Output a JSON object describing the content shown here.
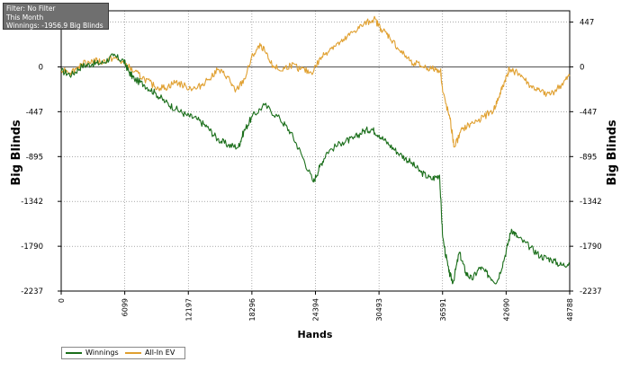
{
  "info": {
    "filter": "Filter: No Filter",
    "period": "This Month",
    "winnings": "Winnings: -1956.9 Big Blinds"
  },
  "chart_data": {
    "type": "line",
    "xlabel": "Hands",
    "ylabel": "Big Blinds",
    "y_ticks": [
      447,
      0,
      -447,
      -895,
      -1342,
      -1790,
      -2237
    ],
    "ylim": [
      -2237,
      560
    ],
    "x_tick_labels": [
      "0",
      "6099",
      "12197",
      "18296",
      "24394",
      "30493",
      "36591",
      "42690",
      "48788"
    ],
    "xlim": [
      0,
      48788
    ],
    "grid": true,
    "legend": "bottom-left",
    "series": [
      {
        "name": "Winnings",
        "color": "#1a6e1a",
        "points": [
          [
            0,
            -40
          ],
          [
            1000,
            -80
          ],
          [
            2000,
            10
          ],
          [
            3000,
            30
          ],
          [
            4000,
            40
          ],
          [
            5000,
            110
          ],
          [
            6000,
            60
          ],
          [
            6500,
            -50
          ],
          [
            7000,
            -120
          ],
          [
            8000,
            -180
          ],
          [
            9000,
            -260
          ],
          [
            10000,
            -350
          ],
          [
            11000,
            -420
          ],
          [
            12000,
            -480
          ],
          [
            13000,
            -520
          ],
          [
            14000,
            -600
          ],
          [
            15000,
            -720
          ],
          [
            16000,
            -780
          ],
          [
            17000,
            -800
          ],
          [
            17500,
            -650
          ],
          [
            18300,
            -500
          ],
          [
            19500,
            -380
          ],
          [
            21000,
            -520
          ],
          [
            22000,
            -650
          ],
          [
            23000,
            -860
          ],
          [
            24200,
            -1150
          ],
          [
            24800,
            -1000
          ],
          [
            25500,
            -850
          ],
          [
            27000,
            -750
          ],
          [
            28000,
            -720
          ],
          [
            29000,
            -640
          ],
          [
            29800,
            -620
          ],
          [
            30500,
            -680
          ],
          [
            31500,
            -780
          ],
          [
            32500,
            -870
          ],
          [
            33500,
            -950
          ],
          [
            34500,
            -1050
          ],
          [
            35500,
            -1120
          ],
          [
            36300,
            -1080
          ],
          [
            36600,
            -1700
          ],
          [
            37200,
            -2050
          ],
          [
            37600,
            -2150
          ],
          [
            38200,
            -1850
          ],
          [
            38800,
            -2050
          ],
          [
            39400,
            -2120
          ],
          [
            40200,
            -2000
          ],
          [
            41000,
            -2080
          ],
          [
            41800,
            -2150
          ],
          [
            42600,
            -1880
          ],
          [
            43200,
            -1620
          ],
          [
            43800,
            -1700
          ],
          [
            45000,
            -1800
          ],
          [
            46000,
            -1890
          ],
          [
            47000,
            -1920
          ],
          [
            48000,
            -1980
          ],
          [
            48788,
            -1956.9
          ]
        ]
      },
      {
        "name": "All-In EV",
        "color": "#e0a030",
        "points": [
          [
            0,
            -20
          ],
          [
            1000,
            -50
          ],
          [
            2000,
            30
          ],
          [
            3000,
            60
          ],
          [
            4000,
            50
          ],
          [
            5000,
            90
          ],
          [
            6000,
            40
          ],
          [
            7000,
            -50
          ],
          [
            8000,
            -120
          ],
          [
            9000,
            -200
          ],
          [
            10000,
            -210
          ],
          [
            11000,
            -150
          ],
          [
            12000,
            -200
          ],
          [
            13000,
            -220
          ],
          [
            14000,
            -130
          ],
          [
            15000,
            -30
          ],
          [
            16000,
            -100
          ],
          [
            16700,
            -250
          ],
          [
            17600,
            -120
          ],
          [
            18400,
            120
          ],
          [
            19200,
            220
          ],
          [
            20000,
            50
          ],
          [
            21000,
            -40
          ],
          [
            22000,
            20
          ],
          [
            23000,
            -20
          ],
          [
            24000,
            -60
          ],
          [
            25000,
            100
          ],
          [
            26000,
            200
          ],
          [
            27000,
            250
          ],
          [
            28000,
            350
          ],
          [
            29000,
            420
          ],
          [
            30000,
            480
          ],
          [
            30700,
            380
          ],
          [
            31500,
            300
          ],
          [
            32500,
            160
          ],
          [
            33500,
            60
          ],
          [
            34500,
            10
          ],
          [
            35500,
            -20
          ],
          [
            36400,
            -30
          ],
          [
            36600,
            -250
          ],
          [
            37300,
            -520
          ],
          [
            37700,
            -800
          ],
          [
            38500,
            -620
          ],
          [
            39500,
            -560
          ],
          [
            40500,
            -500
          ],
          [
            41500,
            -430
          ],
          [
            42000,
            -300
          ],
          [
            42600,
            -130
          ],
          [
            43000,
            -20
          ],
          [
            44000,
            -70
          ],
          [
            45000,
            -190
          ],
          [
            46000,
            -250
          ],
          [
            47000,
            -270
          ],
          [
            48000,
            -180
          ],
          [
            48788,
            -90
          ]
        ]
      }
    ]
  }
}
